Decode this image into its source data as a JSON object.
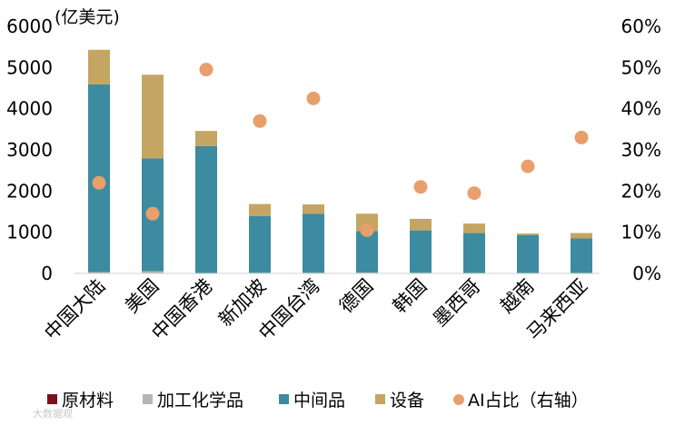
{
  "chart_data": {
    "type": "bar",
    "stacked": true,
    "unit_label": "(亿美元)",
    "categories": [
      "中国大陆",
      "美国",
      "中国香港",
      "新加坡",
      "中国台湾",
      "德国",
      "韩国",
      "墨西哥",
      "越南",
      "马来西亚"
    ],
    "series": [
      {
        "name": "原材料",
        "color": "#7b1020",
        "values": [
          10,
          15,
          0,
          0,
          0,
          0,
          0,
          0,
          0,
          0
        ]
      },
      {
        "name": "加工化学品",
        "color": "#b8b5ae",
        "values": [
          20,
          40,
          10,
          15,
          15,
          20,
          15,
          10,
          10,
          10
        ]
      },
      {
        "name": "中间品",
        "color": "#3d8ba0",
        "values": [
          4560,
          2740,
          3080,
          1380,
          1430,
          1010,
          1030,
          970,
          920,
          840
        ]
      },
      {
        "name": "设备",
        "color": "#c4a562",
        "values": [
          840,
          2030,
          370,
          290,
          230,
          420,
          280,
          230,
          40,
          130
        ]
      }
    ],
    "line_series": {
      "name": "AI占比（右轴）",
      "color": "#e89f6c",
      "axis": "right",
      "values": [
        22,
        14.5,
        49.5,
        37,
        42.5,
        10.5,
        21,
        19.5,
        26,
        33
      ]
    },
    "y_left": {
      "min": 0,
      "max": 6000,
      "ticks": [
        "0",
        "1000",
        "2000",
        "3000",
        "4000",
        "5000",
        "6000"
      ]
    },
    "y_right": {
      "min": 0,
      "max": 60,
      "ticks": [
        "0%",
        "10%",
        "20%",
        "30%",
        "40%",
        "50%",
        "60%"
      ]
    },
    "legend_position": "bottom",
    "grid": false
  },
  "watermark": "大数据观"
}
